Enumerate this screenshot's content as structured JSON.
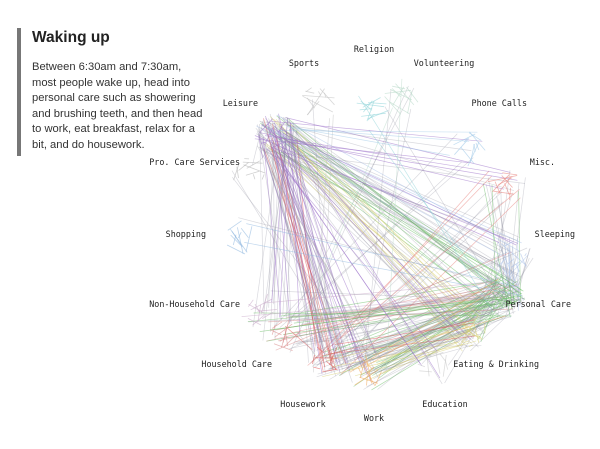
{
  "annotation": {
    "title": "Waking up",
    "body": "Between 6:30am and 7:30am, most people wake up, head into personal care such as showering and brushing teeth, and then head to work, eat breakfast, relax for a bit, and do housework."
  },
  "chart_data": {
    "type": "network",
    "description_title": "Waking up",
    "time_window": [
      "6:30am",
      "7:30am"
    ],
    "nodes": [
      {
        "id": "religion",
        "label": "Religion",
        "color": "#8fd3d8"
      },
      {
        "id": "volunteering",
        "label": "Volunteering",
        "color": "#b8d8c8"
      },
      {
        "id": "phone_calls",
        "label": "Phone Calls",
        "color": "#9ec8e8"
      },
      {
        "id": "misc",
        "label": "Misc.",
        "color": "#e8827c"
      },
      {
        "id": "sleeping",
        "label": "Sleeping",
        "color": "#a8c0e8"
      },
      {
        "id": "personal_care",
        "label": "Personal Care",
        "color": "#6fbf6a"
      },
      {
        "id": "eating_drinking",
        "label": "Eating & Drinking",
        "color": "#d8d070"
      },
      {
        "id": "education",
        "label": "Education",
        "color": "#c8c8c8"
      },
      {
        "id": "work",
        "label": "Work",
        "color": "#f2a65a"
      },
      {
        "id": "housework",
        "label": "Housework",
        "color": "#e05a5a"
      },
      {
        "id": "household_care",
        "label": "Household Care",
        "color": "#d88a8a"
      },
      {
        "id": "non_household_care",
        "label": "Non-Household Care",
        "color": "#c8a8c8"
      },
      {
        "id": "shopping",
        "label": "Shopping",
        "color": "#90b8e0"
      },
      {
        "id": "pro_care_services",
        "label": "Pro. Care Services",
        "color": "#b0b0b0"
      },
      {
        "id": "leisure",
        "label": "Leisure",
        "color": "#9b6fc9"
      },
      {
        "id": "sports",
        "label": "Sports",
        "color": "#c0c0c0"
      }
    ],
    "transitions": [
      {
        "from": "sleeping",
        "to": "personal_care",
        "weight": 9
      },
      {
        "from": "personal_care",
        "to": "work",
        "weight": 8
      },
      {
        "from": "personal_care",
        "to": "eating_drinking",
        "weight": 7
      },
      {
        "from": "personal_care",
        "to": "leisure",
        "weight": 7
      },
      {
        "from": "eating_drinking",
        "to": "leisure",
        "weight": 6
      },
      {
        "from": "leisure",
        "to": "housework",
        "weight": 6
      },
      {
        "from": "personal_care",
        "to": "housework",
        "weight": 6
      },
      {
        "from": "housework",
        "to": "leisure",
        "weight": 5
      },
      {
        "from": "eating_drinking",
        "to": "work",
        "weight": 5
      },
      {
        "from": "leisure",
        "to": "work",
        "weight": 5
      },
      {
        "from": "household_care",
        "to": "personal_care",
        "weight": 4
      },
      {
        "from": "leisure",
        "to": "household_care",
        "weight": 4
      },
      {
        "from": "personal_care",
        "to": "misc",
        "weight": 4
      },
      {
        "from": "misc",
        "to": "housework",
        "weight": 3
      },
      {
        "from": "sleeping",
        "to": "leisure",
        "weight": 3
      },
      {
        "from": "leisure",
        "to": "sleeping",
        "weight": 3
      },
      {
        "from": "personal_care",
        "to": "household_care",
        "weight": 3
      },
      {
        "from": "eating_drinking",
        "to": "housework",
        "weight": 3
      },
      {
        "from": "leisure",
        "to": "non_household_care",
        "weight": 2
      },
      {
        "from": "personal_care",
        "to": "non_household_care",
        "weight": 2
      },
      {
        "from": "leisure",
        "to": "eating_drinking",
        "weight": 2
      },
      {
        "from": "housework",
        "to": "eating_drinking",
        "weight": 2
      },
      {
        "from": "leisure",
        "to": "education",
        "weight": 2
      },
      {
        "from": "work",
        "to": "personal_care",
        "weight": 2
      },
      {
        "from": "leisure",
        "to": "misc",
        "weight": 2
      },
      {
        "from": "religion",
        "to": "personal_care",
        "weight": 1
      },
      {
        "from": "volunteering",
        "to": "household_care",
        "weight": 1
      },
      {
        "from": "phone_calls",
        "to": "household_care",
        "weight": 1
      },
      {
        "from": "leisure",
        "to": "pro_care_services",
        "weight": 1
      },
      {
        "from": "sports",
        "to": "housework",
        "weight": 1
      },
      {
        "from": "shopping",
        "to": "personal_care",
        "weight": 1
      },
      {
        "from": "pro_care_services",
        "to": "work",
        "weight": 1
      },
      {
        "from": "leisure",
        "to": "phone_calls",
        "weight": 1
      },
      {
        "from": "education",
        "to": "personal_care",
        "weight": 1
      },
      {
        "from": "volunteering",
        "to": "work",
        "weight": 1
      },
      {
        "from": "non_household_care",
        "to": "personal_care",
        "weight": 1
      },
      {
        "from": "housework",
        "to": "household_care",
        "weight": 1
      },
      {
        "from": "household_care",
        "to": "sleeping",
        "weight": 1
      },
      {
        "from": "phone_calls",
        "to": "leisure",
        "weight": 1
      }
    ]
  }
}
